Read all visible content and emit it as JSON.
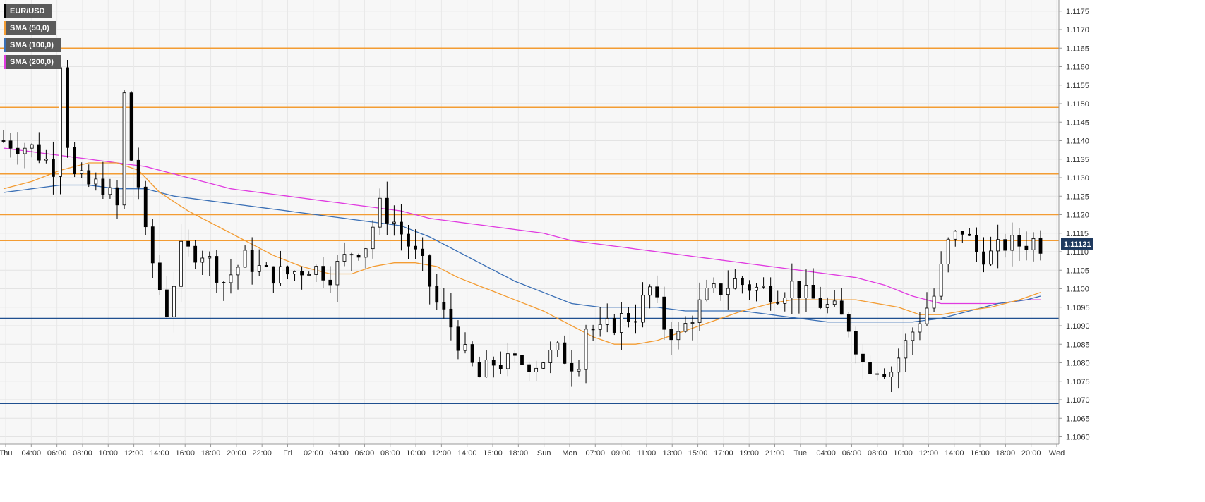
{
  "legend": [
    {
      "label": "EUR/USD",
      "color": "#000000"
    },
    {
      "label": "SMA (50,0)",
      "color": "#f39c33"
    },
    {
      "label": "SMA (100,0)",
      "color": "#3a6fb5"
    },
    {
      "label": "SMA (200,0)",
      "color": "#e03ae0"
    }
  ],
  "chart_data": {
    "type": "candlestick",
    "symbol": "EUR/USD",
    "timeframe": "15m",
    "ylim": [
      1.1058,
      1.1178
    ],
    "y_ticks": [
      "1.1175",
      "1.1170",
      "1.1165",
      "1.1160",
      "1.1155",
      "1.1150",
      "1.1145",
      "1.1140",
      "1.1135",
      "1.1130",
      "1.1125",
      "1.1120",
      "1.1115",
      "1.1110",
      "1.1105",
      "1.1100",
      "1.1095",
      "1.1090",
      "1.1085",
      "1.1080",
      "1.1075",
      "1.1070",
      "1.1065",
      "1.1060"
    ],
    "x_ticks": [
      "Thu",
      "04:00",
      "06:00",
      "08:00",
      "10:00",
      "12:00",
      "14:00",
      "16:00",
      "18:00",
      "20:00",
      "22:00",
      "Fri",
      "02:00",
      "04:00",
      "06:00",
      "08:00",
      "10:00",
      "12:00",
      "14:00",
      "16:00",
      "18:00",
      "Sun",
      "Mon",
      "07:00",
      "09:00",
      "11:00",
      "13:00",
      "15:00",
      "17:00",
      "19:00",
      "21:00",
      "Tue",
      "04:00",
      "06:00",
      "08:00",
      "10:00",
      "12:00",
      "14:00",
      "16:00",
      "18:00",
      "20:00",
      "Wed"
    ],
    "last_price": "1.11121",
    "resistance_levels": [
      1.1165,
      1.1149,
      1.1131,
      1.112,
      1.1113
    ],
    "support_levels": [
      1.1092,
      1.1069
    ],
    "price_path": [
      [
        0,
        1.114
      ],
      [
        4,
        1.1138
      ],
      [
        7,
        1.1133
      ],
      [
        8,
        1.1162
      ],
      [
        9,
        1.114
      ],
      [
        10,
        1.113
      ],
      [
        12,
        1.1128
      ],
      [
        14,
        1.1128
      ],
      [
        16,
        1.1122
      ],
      [
        17,
        1.1152
      ],
      [
        18,
        1.1135
      ],
      [
        19,
        1.1128
      ],
      [
        20,
        1.1114
      ],
      [
        22,
        1.11
      ],
      [
        23,
        1.1094
      ],
      [
        25,
        1.111
      ],
      [
        28,
        1.111
      ],
      [
        31,
        1.1102
      ],
      [
        34,
        1.1108
      ],
      [
        37,
        1.1104
      ],
      [
        40,
        1.1104
      ],
      [
        43,
        1.1106
      ],
      [
        46,
        1.1104
      ],
      [
        49,
        1.111
      ],
      [
        51,
        1.1112
      ],
      [
        53,
        1.1122
      ],
      [
        55,
        1.1118
      ],
      [
        57,
        1.1112
      ],
      [
        59,
        1.1106
      ],
      [
        61,
        1.1096
      ],
      [
        63,
        1.109
      ],
      [
        65,
        1.1082
      ],
      [
        67,
        1.1076
      ],
      [
        69,
        1.108
      ],
      [
        72,
        1.108
      ],
      [
        75,
        1.108
      ],
      [
        78,
        1.1083
      ],
      [
        80,
        1.108
      ],
      [
        81,
        1.1081
      ],
      [
        82,
        1.109
      ],
      [
        84,
        1.1088
      ],
      [
        87,
        1.1092
      ],
      [
        89,
        1.1093
      ],
      [
        91,
        1.11
      ],
      [
        93,
        1.109
      ],
      [
        95,
        1.1087
      ],
      [
        97,
        1.1093
      ],
      [
        99,
        1.1098
      ],
      [
        101,
        1.11
      ],
      [
        103,
        1.1102
      ],
      [
        106,
        1.11
      ],
      [
        109,
        1.1099
      ],
      [
        111,
        1.1101
      ],
      [
        113,
        1.1098
      ],
      [
        115,
        1.1096
      ],
      [
        117,
        1.1094
      ],
      [
        119,
        1.109
      ],
      [
        121,
        1.108
      ],
      [
        123,
        1.1079
      ],
      [
        125,
        1.1078
      ],
      [
        127,
        1.1085
      ],
      [
        129,
        1.1092
      ],
      [
        131,
        1.1098
      ],
      [
        133,
        1.1112
      ],
      [
        135,
        1.1116
      ],
      [
        137,
        1.111
      ],
      [
        139,
        1.1109
      ],
      [
        141,
        1.1112
      ],
      [
        143,
        1.1112
      ],
      [
        145,
        1.1113
      ],
      [
        146,
        1.1112
      ]
    ],
    "sma_50": [
      [
        0,
        1.1127
      ],
      [
        4,
        1.1129
      ],
      [
        8,
        1.1132
      ],
      [
        12,
        1.1134
      ],
      [
        16,
        1.1134
      ],
      [
        19,
        1.1132
      ],
      [
        22,
        1.1126
      ],
      [
        26,
        1.1121
      ],
      [
        30,
        1.1117
      ],
      [
        34,
        1.1113
      ],
      [
        38,
        1.1109
      ],
      [
        42,
        1.1106
      ],
      [
        46,
        1.1104
      ],
      [
        49,
        1.1104
      ],
      [
        52,
        1.1106
      ],
      [
        55,
        1.1107
      ],
      [
        58,
        1.1107
      ],
      [
        61,
        1.1106
      ],
      [
        64,
        1.1103
      ],
      [
        68,
        1.11
      ],
      [
        72,
        1.1097
      ],
      [
        76,
        1.1094
      ],
      [
        80,
        1.109
      ],
      [
        83,
        1.1087
      ],
      [
        86,
        1.1085
      ],
      [
        89,
        1.1085
      ],
      [
        92,
        1.1086
      ],
      [
        95,
        1.1088
      ],
      [
        98,
        1.109
      ],
      [
        101,
        1.1092
      ],
      [
        104,
        1.1094
      ],
      [
        108,
        1.1096
      ],
      [
        111,
        1.1097
      ],
      [
        114,
        1.1097
      ],
      [
        117,
        1.1097
      ],
      [
        120,
        1.1097
      ],
      [
        123,
        1.1096
      ],
      [
        126,
        1.1095
      ],
      [
        129,
        1.1093
      ],
      [
        132,
        1.1093
      ],
      [
        135,
        1.1094
      ],
      [
        139,
        1.1095
      ],
      [
        143,
        1.1097
      ],
      [
        146,
        1.1099
      ]
    ],
    "sma_100": [
      [
        0,
        1.1126
      ],
      [
        4,
        1.1127
      ],
      [
        8,
        1.1128
      ],
      [
        12,
        1.1128
      ],
      [
        16,
        1.1127
      ],
      [
        20,
        1.1127
      ],
      [
        24,
        1.1125
      ],
      [
        28,
        1.1124
      ],
      [
        32,
        1.1123
      ],
      [
        36,
        1.1122
      ],
      [
        40,
        1.1121
      ],
      [
        44,
        1.112
      ],
      [
        48,
        1.1119
      ],
      [
        52,
        1.1118
      ],
      [
        56,
        1.1117
      ],
      [
        60,
        1.1114
      ],
      [
        64,
        1.111
      ],
      [
        68,
        1.1106
      ],
      [
        72,
        1.1102
      ],
      [
        76,
        1.1099
      ],
      [
        80,
        1.1096
      ],
      [
        84,
        1.1095
      ],
      [
        88,
        1.1095
      ],
      [
        92,
        1.1095
      ],
      [
        96,
        1.1094
      ],
      [
        100,
        1.1094
      ],
      [
        104,
        1.1094
      ],
      [
        108,
        1.1093
      ],
      [
        112,
        1.1092
      ],
      [
        116,
        1.1091
      ],
      [
        120,
        1.1091
      ],
      [
        124,
        1.1091
      ],
      [
        128,
        1.1091
      ],
      [
        132,
        1.1092
      ],
      [
        136,
        1.1094
      ],
      [
        140,
        1.1096
      ],
      [
        144,
        1.1097
      ],
      [
        146,
        1.1098
      ]
    ],
    "sma_200": [
      [
        0,
        1.1138
      ],
      [
        4,
        1.1137
      ],
      [
        8,
        1.1136
      ],
      [
        12,
        1.1135
      ],
      [
        16,
        1.1134
      ],
      [
        20,
        1.1133
      ],
      [
        24,
        1.1131
      ],
      [
        28,
        1.1129
      ],
      [
        32,
        1.1127
      ],
      [
        36,
        1.1126
      ],
      [
        40,
        1.1125
      ],
      [
        44,
        1.1124
      ],
      [
        48,
        1.1123
      ],
      [
        52,
        1.1122
      ],
      [
        56,
        1.1121
      ],
      [
        60,
        1.1119
      ],
      [
        64,
        1.1118
      ],
      [
        68,
        1.1117
      ],
      [
        72,
        1.1116
      ],
      [
        76,
        1.1115
      ],
      [
        80,
        1.1113
      ],
      [
        84,
        1.1112
      ],
      [
        88,
        1.1111
      ],
      [
        92,
        1.111
      ],
      [
        96,
        1.1109
      ],
      [
        100,
        1.1108
      ],
      [
        104,
        1.1107
      ],
      [
        108,
        1.1106
      ],
      [
        112,
        1.1105
      ],
      [
        116,
        1.1104
      ],
      [
        120,
        1.1103
      ],
      [
        124,
        1.1101
      ],
      [
        128,
        1.1098
      ],
      [
        132,
        1.1096
      ],
      [
        136,
        1.1096
      ],
      [
        140,
        1.1096
      ],
      [
        144,
        1.1097
      ],
      [
        146,
        1.1097
      ]
    ],
    "candle_count": 147,
    "grid": true,
    "colors": {
      "up": "#ffffff",
      "down": "#000000",
      "wick": "#000000",
      "resistance": "#f39c33",
      "support": "#1f4f8f",
      "sma_50": "#f39c33",
      "sma_100": "#3a6fb5",
      "sma_200": "#e03ae0",
      "price_tag": "#1f3a5f"
    }
  }
}
